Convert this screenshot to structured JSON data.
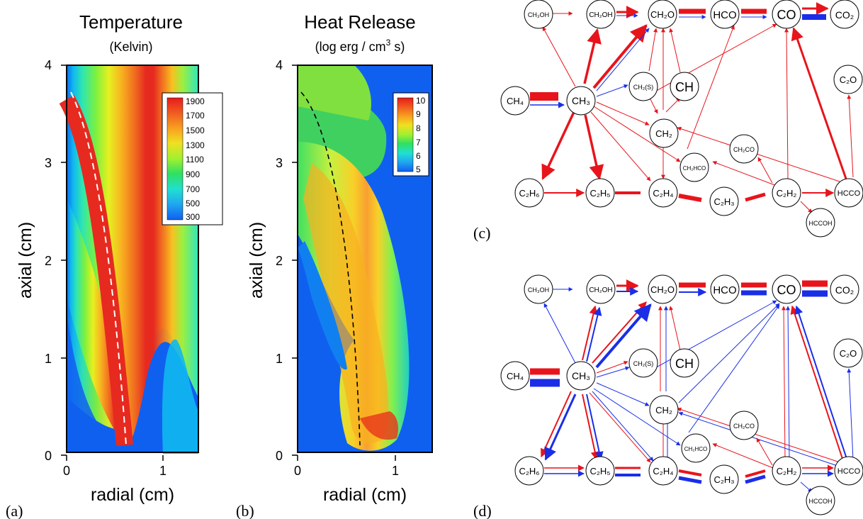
{
  "panel_a": {
    "title": "Temperature",
    "subtitle": "(Kelvin)",
    "xlabel": "radial (cm)",
    "ylabel": "axial (cm)",
    "label": "(a)",
    "xticks": [
      "0",
      "1"
    ],
    "yticks": [
      "0",
      "1",
      "2",
      "3",
      "4"
    ],
    "legend": [
      "1900",
      "1700",
      "1500",
      "1300",
      "1100",
      "900",
      "700",
      "500",
      "300"
    ]
  },
  "panel_b": {
    "title": "Heat Release",
    "subtitle": "(log erg / cm",
    "subtitle_sup": "3",
    "subtitle_end": " s)",
    "xlabel": "radial (cm)",
    "ylabel": "axial (cm)",
    "label": "(b)",
    "xticks": [
      "0",
      "1"
    ],
    "yticks": [
      "0",
      "1",
      "2",
      "3",
      "4"
    ],
    "legend": [
      "10",
      "9",
      "8",
      "7",
      "6",
      "5"
    ]
  },
  "panel_c": {
    "label": "(c)"
  },
  "panel_d": {
    "label": "(d)"
  },
  "species": {
    "ch3oh": "CH₃OH",
    "ch2oh": "CH₂OH",
    "ch2o": "CH₂O",
    "hco": "HCO",
    "co": "CO",
    "co2": "CO₂",
    "ch4": "CH₄",
    "ch3": "CH₃",
    "ch2s": "CH₂(S)",
    "ch": "CH",
    "c2o": "C₂O",
    "ch2": "CH₂",
    "ch2co": "CH₂CO",
    "ch2hco": "CH₂HCO",
    "c2h6": "C₂H₆",
    "c2h5": "C₂H₅",
    "c2h4": "C₂H₄",
    "c2h3": "C₂H₃",
    "c2h2": "C₂H₂",
    "hcco": "HCCO",
    "hccoh": "HCCOH"
  },
  "colors": {
    "red": "#e8141b",
    "blue": "#1a2ee8"
  }
}
